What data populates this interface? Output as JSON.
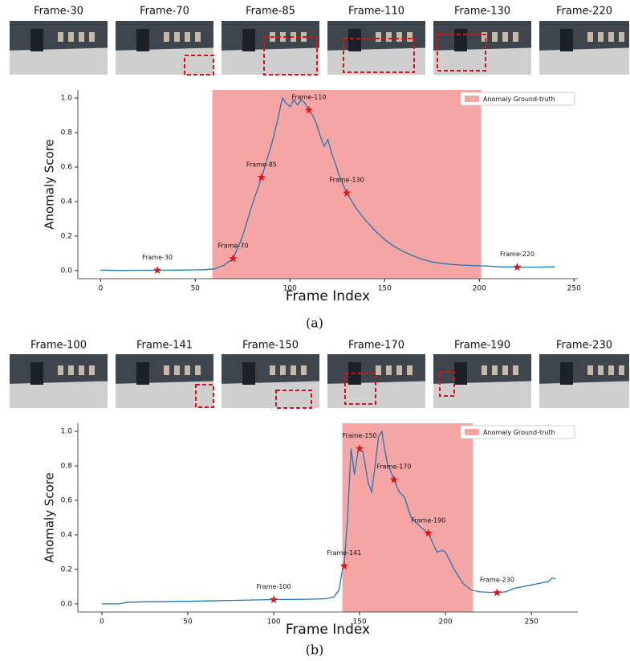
{
  "chart_data": [
    {
      "type": "line",
      "caption": "(a)",
      "xlabel": "Frame Index",
      "ylabel": "Anomaly Score",
      "color": "#1f77b4",
      "frames": [
        "Frame-30",
        "Frame-70",
        "Frame-85",
        "Frame-110",
        "Frame-130",
        "Frame-220"
      ],
      "highlight": {
        "name": "Anomaly Ground-truth",
        "range": [
          59,
          201
        ],
        "color": "#f6a5a5"
      },
      "x": [
        0,
        10,
        20,
        30,
        40,
        50,
        55,
        60,
        65,
        70,
        75,
        80,
        85,
        90,
        93,
        95,
        96,
        98,
        100,
        102,
        104,
        106,
        108,
        110,
        112,
        114,
        116,
        118,
        120,
        122,
        124,
        126,
        128,
        130,
        135,
        140,
        145,
        150,
        155,
        160,
        165,
        170,
        175,
        180,
        185,
        190,
        195,
        200,
        205,
        210,
        220,
        230,
        240
      ],
      "values": [
        0.003,
        0.001,
        0.002,
        0.002,
        0.003,
        0.004,
        0.005,
        0.01,
        0.03,
        0.07,
        0.2,
        0.38,
        0.54,
        0.72,
        0.85,
        0.95,
        1.0,
        0.97,
        0.95,
        0.99,
        0.96,
        0.99,
        0.97,
        0.93,
        0.9,
        0.85,
        0.78,
        0.72,
        0.76,
        0.68,
        0.62,
        0.55,
        0.5,
        0.45,
        0.36,
        0.29,
        0.23,
        0.18,
        0.14,
        0.11,
        0.085,
        0.065,
        0.05,
        0.042,
        0.036,
        0.032,
        0.03,
        0.028,
        0.026,
        0.022,
        0.02,
        0.02,
        0.022
      ],
      "annotations": [
        {
          "label": "Frame-30",
          "x": 30,
          "y": 0.002
        },
        {
          "label": "Frame-70",
          "x": 70,
          "y": 0.07
        },
        {
          "label": "Frame-85",
          "x": 85,
          "y": 0.54
        },
        {
          "label": "Frame-110",
          "x": 110,
          "y": 0.93
        },
        {
          "label": "Frame-130",
          "x": 130,
          "y": 0.45
        },
        {
          "label": "Frame-220",
          "x": 220,
          "y": 0.02
        }
      ],
      "xlim": [
        -12,
        252
      ],
      "ylim": [
        -0.047,
        1.047
      ],
      "xticks": [
        0,
        50,
        100,
        150,
        200,
        250
      ],
      "yticks": [
        {
          "value": 0,
          "label": "0.0"
        },
        {
          "value": 0.2,
          "label": "0.2"
        },
        {
          "value": 0.4,
          "label": "0.4"
        },
        {
          "value": 0.6,
          "label": "0.6"
        },
        {
          "value": 0.8,
          "label": "0.8"
        },
        {
          "value": 1,
          "label": "1.0"
        }
      ]
    },
    {
      "type": "line",
      "caption": "(b)",
      "xlabel": "Frame Index",
      "ylabel": "Anomaly Score",
      "color": "#1f77b4",
      "frames": [
        "Frame-100",
        "Frame-141",
        "Frame-150",
        "Frame-170",
        "Frame-190",
        "Frame-230"
      ],
      "highlight": {
        "name": "Anomaly Ground-truth",
        "range": [
          140,
          216
        ],
        "color": "#f6a5a5"
      },
      "x": [
        0,
        10,
        15,
        25,
        50,
        75,
        100,
        120,
        130,
        135,
        138,
        140,
        141,
        143,
        145,
        147,
        149,
        150,
        152,
        155,
        157,
        159,
        161,
        163,
        164,
        166,
        168,
        170,
        173,
        176,
        180,
        185,
        190,
        195,
        198,
        200,
        205,
        210,
        215,
        220,
        230,
        235,
        240,
        245,
        250,
        255,
        260,
        262,
        264
      ],
      "values": [
        0.0,
        0.0,
        0.01,
        0.012,
        0.015,
        0.02,
        0.025,
        0.027,
        0.03,
        0.04,
        0.08,
        0.2,
        0.22,
        0.5,
        0.9,
        0.75,
        0.88,
        0.9,
        0.88,
        0.7,
        0.65,
        0.8,
        0.97,
        1.0,
        0.93,
        0.82,
        0.77,
        0.72,
        0.65,
        0.62,
        0.5,
        0.45,
        0.41,
        0.3,
        0.31,
        0.3,
        0.2,
        0.12,
        0.08,
        0.07,
        0.065,
        0.07,
        0.09,
        0.1,
        0.11,
        0.12,
        0.13,
        0.15,
        0.145
      ],
      "annotations": [
        {
          "label": "Frame-100",
          "x": 100,
          "y": 0.025
        },
        {
          "label": "Frame-141",
          "x": 141,
          "y": 0.22
        },
        {
          "label": "Frame-150",
          "x": 150,
          "y": 0.9
        },
        {
          "label": "Frame-170",
          "x": 170,
          "y": 0.72
        },
        {
          "label": "Frame-190",
          "x": 190,
          "y": 0.41
        },
        {
          "label": "Frame-230",
          "x": 230,
          "y": 0.065
        }
      ],
      "xlim": [
        -14,
        277
      ],
      "ylim": [
        -0.047,
        1.047
      ],
      "xticks": [
        0,
        50,
        100,
        150,
        200,
        250
      ],
      "yticks": [
        {
          "value": 0,
          "label": "0.0"
        },
        {
          "value": 0.2,
          "label": "0.2"
        },
        {
          "value": 0.4,
          "label": "0.4"
        },
        {
          "value": 0.6,
          "label": "0.6"
        },
        {
          "value": 0.8,
          "label": "0.8"
        },
        {
          "value": 1,
          "label": "1.0"
        }
      ]
    }
  ]
}
